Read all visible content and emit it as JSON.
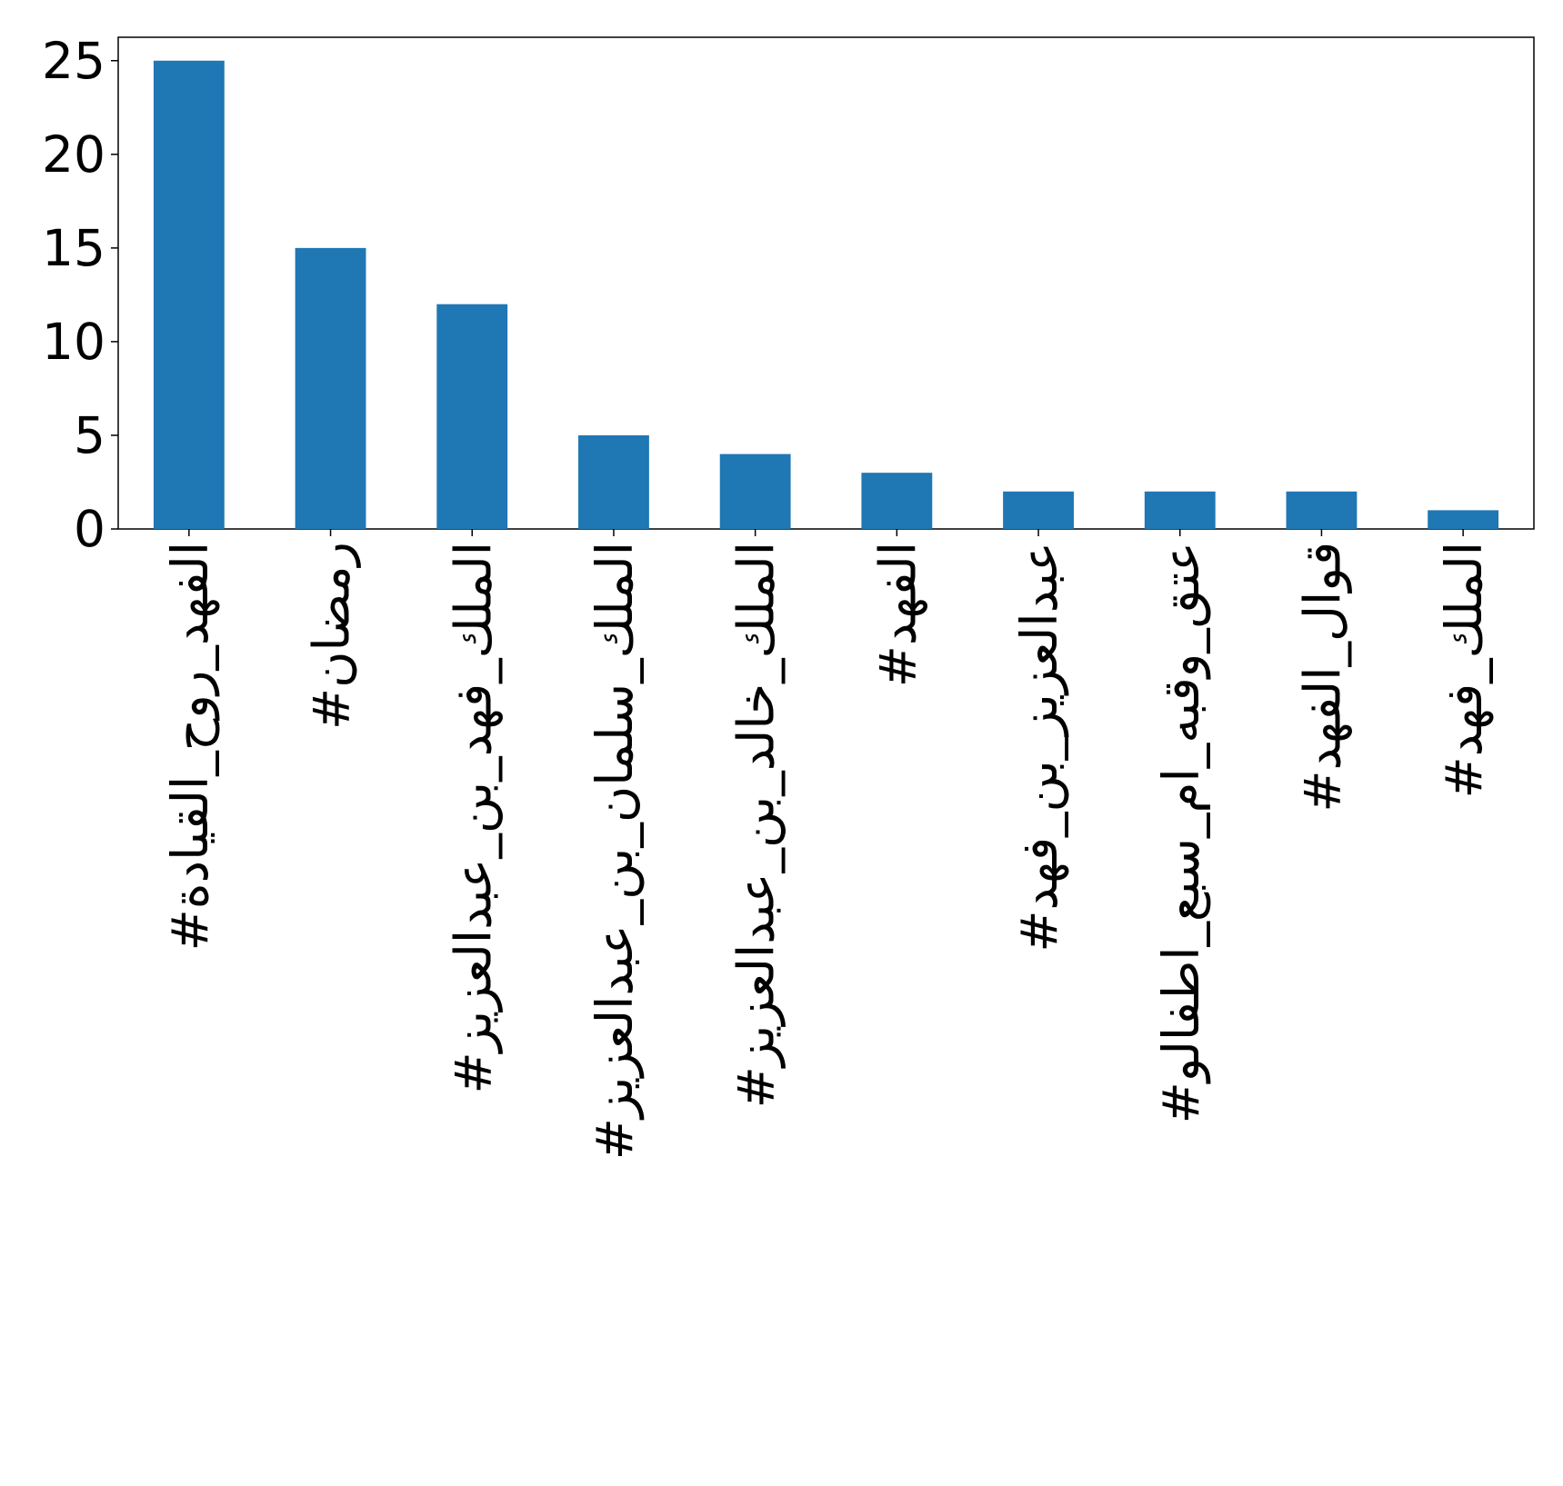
{
  "chart_data": {
    "type": "bar",
    "categories": [
      "#الفهد_روح_القيادة",
      "#رمضان",
      "#الملك_فهد_بن_عبدالعزيز",
      "#الملك_سلمان_بن_عبدالعزيز",
      "#الملك_خالد_بن_عبدالعزيز",
      "#الفهد",
      "#عبدالعزيز_بن_فهد",
      "#عتق_وقبه_ام_سبع_اطفالو",
      "#قوال_الفهد",
      "#الملك_فهد"
    ],
    "values": [
      25,
      15,
      12,
      5,
      4,
      3,
      2,
      2,
      2,
      1
    ],
    "color": "#1f77b4",
    "ylim": [
      0,
      26.25
    ],
    "yticks": [
      0,
      5,
      10,
      15,
      20,
      25
    ],
    "grid": false
  }
}
